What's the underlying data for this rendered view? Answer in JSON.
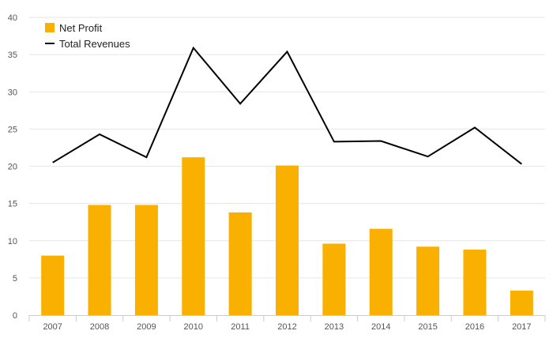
{
  "chart_data": {
    "type": "bar",
    "title": "",
    "xlabel": "",
    "ylabel": "",
    "categories": [
      "2007",
      "2008",
      "2009",
      "2010",
      "2011",
      "2012",
      "2013",
      "2014",
      "2015",
      "2016",
      "2017"
    ],
    "ylim": [
      0,
      40
    ],
    "yticks": [
      "0",
      "5",
      "10",
      "15",
      "20",
      "25",
      "30",
      "35",
      "40"
    ],
    "grid": true,
    "legend_position": "top-left",
    "series": [
      {
        "name": "Net Profit",
        "type": "bar",
        "color": "#F9B000",
        "values": [
          8.0,
          14.8,
          14.8,
          21.2,
          13.8,
          20.1,
          9.6,
          11.6,
          9.2,
          8.8,
          3.3
        ]
      },
      {
        "name": "Total Revenues",
        "type": "line",
        "color": "#000000",
        "values": [
          20.5,
          24.3,
          21.2,
          35.9,
          28.4,
          35.4,
          23.3,
          23.4,
          21.3,
          25.2,
          20.3
        ]
      }
    ]
  }
}
